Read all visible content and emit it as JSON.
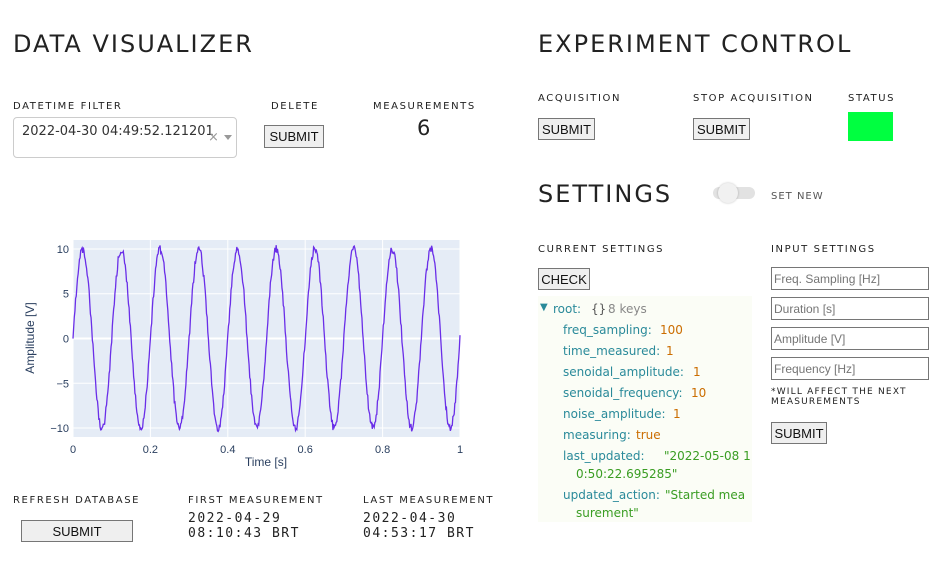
{
  "left": {
    "title": "DATA VISUALIZER",
    "datetime_filter_label": "DATETIME FILTER",
    "datetime_filter_value": "2022-04-30 04:49:52.121201",
    "datetime_clear": "×",
    "delete_label": "DELETE",
    "delete_button": "SUBMIT",
    "measurements_label": "MEASUREMENTS",
    "measurements_count": "6",
    "refresh_label": "REFRESH DATABASE",
    "refresh_button": "SUBMIT",
    "first_label": "FIRST MEASUREMENT",
    "first_date": "2022-04-29",
    "first_time": "08:10:43 BRT",
    "last_label": "LAST MEASUREMENT",
    "last_date": "2022-04-30",
    "last_time": "04:53:17 BRT"
  },
  "chart_data": {
    "type": "line",
    "xlabel": "Time [s]",
    "ylabel": "Amplitude [V]",
    "xlim": [
      0,
      1
    ],
    "ylim": [
      -11,
      11
    ],
    "xticks": [
      "0",
      "0.2",
      "0.4",
      "0.6",
      "0.8",
      "1"
    ],
    "xtick_values": [
      0,
      0.2,
      0.4,
      0.6,
      0.8,
      1
    ],
    "yticks": [
      "10",
      "5",
      "0",
      "−5",
      "−10"
    ],
    "ytick_values": [
      10,
      5,
      0,
      -5,
      -10
    ],
    "series": [
      {
        "amplitude": 10,
        "frequency": 10,
        "noise_amplitude": 1,
        "color": "#6a2ee8"
      }
    ],
    "grid": true,
    "background": "#e5ecf6"
  },
  "right": {
    "title": "EXPERIMENT CONTROL",
    "acq_label": "ACQUISITION",
    "acq_button": "SUBMIT",
    "stop_label": "STOP ACQUISITION",
    "stop_button": "SUBMIT",
    "status_label": "STATUS",
    "status_color": "#00ff40",
    "settings_title": "SETTINGS",
    "set_new_label": "SET NEW",
    "current_label": "CURRENT SETTINGS",
    "check_button": "CHECK",
    "input_label": "INPUT SETTINGS",
    "inputs": {
      "freq_placeholder": "Freq. Sampling [Hz]",
      "duration_placeholder": "Duration [s]",
      "amplitude_placeholder": "Amplitude [V]",
      "frequency_placeholder": "Frequency [Hz]"
    },
    "note_line1": "*WILL AFFECT THE NEXT",
    "note_line2": "MEASUREMENTS",
    "input_submit": "SUBMIT",
    "json_view": {
      "root_arrow": "▼",
      "root_key": "root:",
      "root_braces": "{}",
      "root_count": "8 keys",
      "freq_sampling_key": "freq_sampling:",
      "freq_sampling_val": "100",
      "time_measured_key": "time_measured:",
      "time_measured_val": "1",
      "senoidal_amplitude_key": "senoidal_amplitude:",
      "senoidal_amplitude_val": "1",
      "senoidal_frequency_key": "senoidal_frequency:",
      "senoidal_frequency_val": "10",
      "noise_amplitude_key": "noise_amplitude:",
      "noise_amplitude_val": "1",
      "measuring_key": "measuring:",
      "measuring_val": "true",
      "last_updated_key": "last_updated:",
      "last_updated_val_1": "\"2022-05-08 1",
      "last_updated_val_2": "0:50:22.695285\"",
      "updated_action_key": "updated_action:",
      "updated_action_val_1": "\"Started mea",
      "updated_action_val_2": "surement\""
    }
  }
}
